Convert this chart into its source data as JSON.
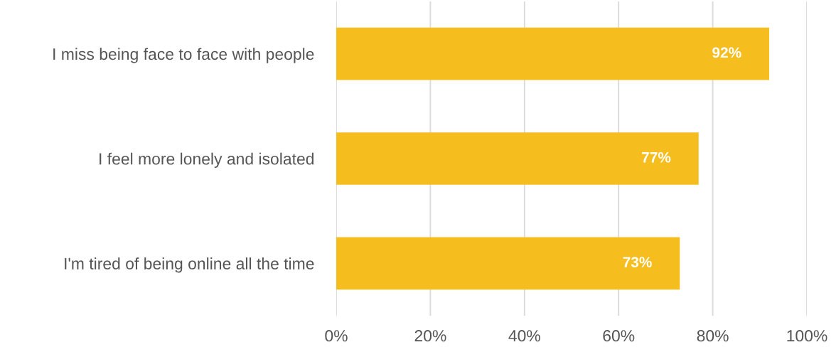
{
  "chart_data": {
    "type": "bar",
    "orientation": "horizontal",
    "categories": [
      "I miss being face to face with people",
      "I feel more lonely and isolated",
      "I'm tired of being online all the time"
    ],
    "values": [
      92,
      77,
      73
    ],
    "color": "#f5be1e",
    "value_labels": [
      "92%",
      "77%",
      "73%"
    ],
    "xlim": [
      0,
      100
    ],
    "xticks": [
      {
        "value": 0,
        "label": "0%"
      },
      {
        "value": 20,
        "label": "20%"
      },
      {
        "value": 40,
        "label": "40%"
      },
      {
        "value": 60,
        "label": "60%"
      },
      {
        "value": 80,
        "label": "80%"
      },
      {
        "value": 100,
        "label": "100%"
      }
    ],
    "grid": "x",
    "legend": false
  }
}
